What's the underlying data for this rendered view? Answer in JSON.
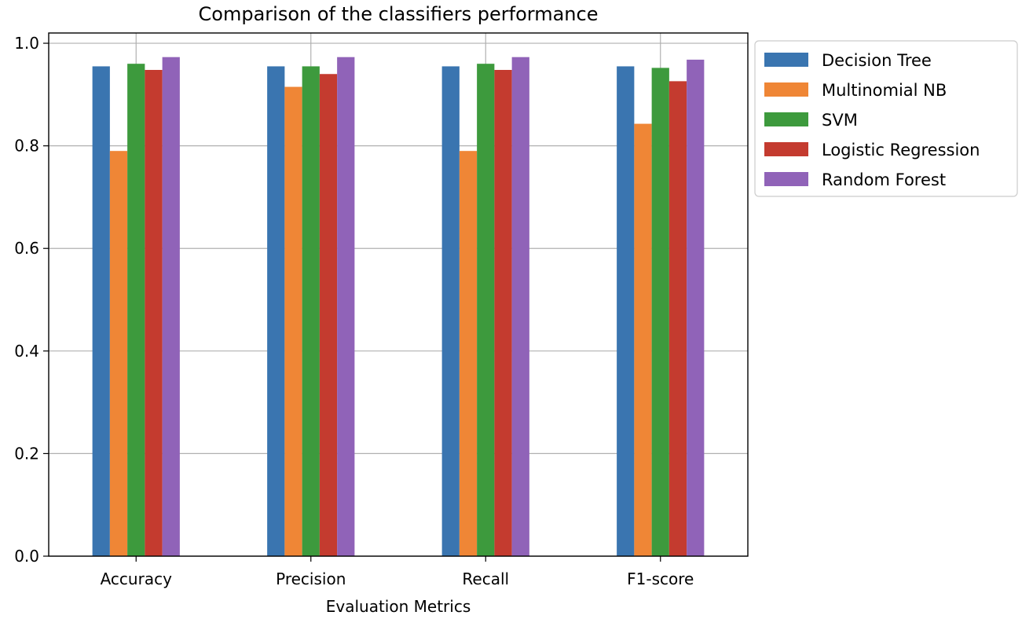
{
  "chart_data": {
    "type": "bar",
    "title": "Comparison of the classifiers performance",
    "xlabel": "Evaluation Metrics",
    "ylabel": "",
    "categories": [
      "Accuracy",
      "Precision",
      "Recall",
      "F1-score"
    ],
    "ylim": [
      0,
      1.02
    ],
    "yticks": [
      0.0,
      0.2,
      0.4,
      0.6,
      0.8,
      1.0
    ],
    "ytick_labels": [
      "0.0",
      "0.2",
      "0.4",
      "0.6",
      "0.8",
      "1.0"
    ],
    "grid": true,
    "legend_position": "outside-right-top",
    "series": [
      {
        "name": "Decision Tree",
        "color": "#3a75b0",
        "values": [
          0.955,
          0.955,
          0.955,
          0.955
        ]
      },
      {
        "name": "Multinomial NB",
        "color": "#ef8636",
        "values": [
          0.79,
          0.915,
          0.79,
          0.843
        ]
      },
      {
        "name": "SVM",
        "color": "#3d9a3d",
        "values": [
          0.96,
          0.955,
          0.96,
          0.952
        ]
      },
      {
        "name": "Logistic Regression",
        "color": "#c43b2f",
        "values": [
          0.948,
          0.94,
          0.948,
          0.926
        ]
      },
      {
        "name": "Random Forest",
        "color": "#9063b8",
        "values": [
          0.973,
          0.973,
          0.973,
          0.968
        ]
      }
    ]
  }
}
